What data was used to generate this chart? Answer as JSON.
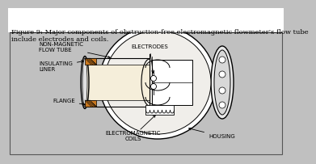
{
  "bg_color": "#c0c0c0",
  "caption_bg": "#ffffff",
  "caption": "Figure 9: Major components of obstruction-free electromagnetic flowmeter's flow tube\ninclude electrodes and coils.",
  "labels": {
    "electromagnetic_coils": "ELECTROMAGNETIC\nCOILS",
    "housing": "HOUSING",
    "flange": "FLANGE",
    "insulating_liner": "INSULATING\nLINER",
    "non_magnetic_flow_tube": "NON-MAGNETIC\nFLOW TUBE",
    "electrodes": "ELECTRODES"
  },
  "orange_color": "#c87820",
  "cream_color": "#f5eeda",
  "white_color": "#ffffff",
  "line_color": "#000000",
  "text_color": "#000000",
  "font_size_labels": 5.0,
  "font_size_caption": 6.0,
  "diagram_border": "#555555"
}
